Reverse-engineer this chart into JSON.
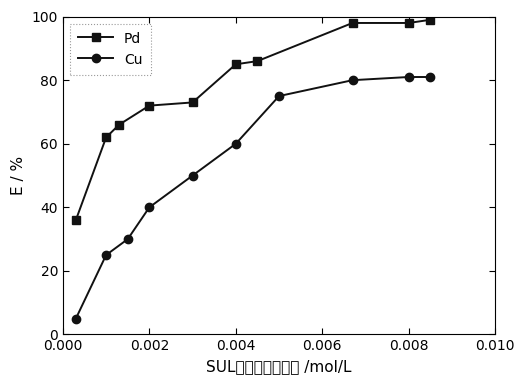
{
  "Pd_x": [
    0.0003,
    0.001,
    0.0013,
    0.002,
    0.003,
    0.004,
    0.0045,
    0.0067,
    0.008,
    0.0085
  ],
  "Pd_y": [
    36,
    62,
    66,
    72,
    73,
    85,
    86,
    98,
    98,
    99
  ],
  "Cu_x": [
    0.0003,
    0.001,
    0.0015,
    0.002,
    0.003,
    0.004,
    0.005,
    0.0067,
    0.008,
    0.0085
  ],
  "Cu_y": [
    5,
    25,
    30,
    40,
    50,
    60,
    75,
    80,
    81,
    81
  ],
  "xlabel": "SUL在有机相中浓度 /mol/L",
  "ylabel": "E / %",
  "xlim": [
    0.0,
    0.01
  ],
  "ylim": [
    0,
    100
  ],
  "xticks": [
    0.0,
    0.002,
    0.004,
    0.006,
    0.008,
    0.01
  ],
  "yticks": [
    0,
    20,
    40,
    60,
    80,
    100
  ],
  "legend_Pd": "Pd",
  "legend_Cu": "Cu",
  "line_color": "#111111",
  "markersize": 6,
  "linewidth": 1.4,
  "tick_fontsize": 10,
  "label_fontsize": 11
}
